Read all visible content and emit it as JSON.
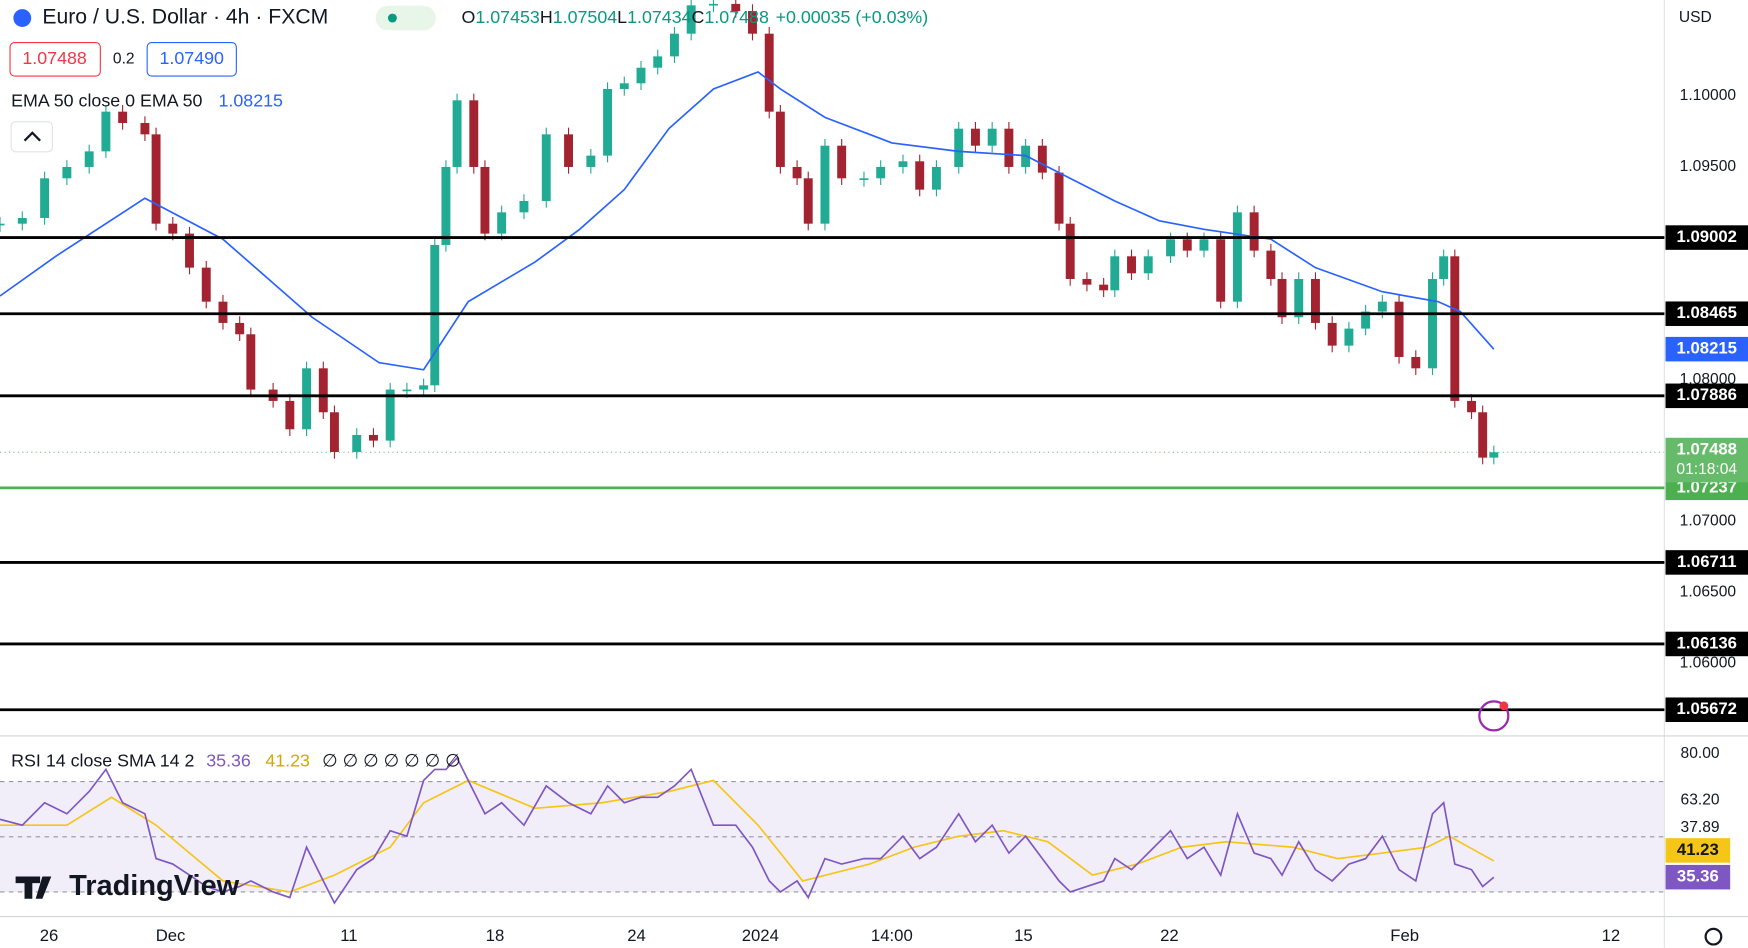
{
  "header": {
    "symbol": "Euro / U.S. Dollar · 4h · FXCM",
    "quote": [
      "O",
      "1.07453",
      "H",
      "1.07504",
      "L",
      "1.07434",
      "C",
      "1.07488",
      "+0.00035 (+0.03%)"
    ],
    "spread": "0.2",
    "ask": "1.07490",
    "currency": "USD",
    "countdown": "01:18:04",
    "logo": "TradingView"
  },
  "chart_data": [
    {
      "type": "candlestick",
      "title": "Euro / U.S. Dollar · 4h · FXCM",
      "x": [
        0,
        4,
        8,
        12,
        16,
        19,
        22,
        26,
        28,
        31,
        34,
        37,
        40,
        43,
        45,
        49,
        52,
        55,
        58,
        60,
        64,
        67,
        70,
        73,
        76,
        78,
        80,
        82,
        85,
        87,
        90,
        94,
        98,
        102,
        106,
        109,
        112,
        115,
        118,
        121,
        124,
        128,
        132,
        135,
        138,
        140,
        143,
        145,
        148,
        151,
        155,
        158,
        162,
        165,
        168,
        172,
        175,
        178,
        181,
        184,
        187,
        190,
        192,
        195,
        198,
        200,
        203,
        206,
        210,
        213,
        216,
        219,
        222,
        225,
        228,
        230,
        233,
        236,
        239,
        242,
        245,
        248,
        251,
        254,
        257,
        259,
        261,
        264,
        266,
        268
      ],
      "values": [
        1.091,
        1.0914,
        1.0942,
        1.095,
        1.0961,
        1.0989,
        1.0981,
        1.0973,
        1.091,
        1.0903,
        1.0879,
        1.0855,
        1.084,
        1.0832,
        1.0793,
        1.0785,
        1.0765,
        1.0808,
        1.0777,
        1.0749,
        1.0761,
        1.0757,
        1.0793,
        1.0793,
        1.0796,
        1.0895,
        1.095,
        1.0997,
        1.095,
        1.0903,
        1.0918,
        1.0926,
        1.0973,
        1.095,
        1.0958,
        1.1005,
        1.1009,
        1.102,
        1.1028,
        1.1044,
        1.1064,
        1.1065,
        1.106,
        1.1044,
        1.0989,
        1.095,
        1.0942,
        1.091,
        1.0965,
        1.0942,
        1.0942,
        1.095,
        1.0954,
        1.0934,
        1.095,
        1.0977,
        1.0965,
        1.0977,
        1.095,
        1.0965,
        1.0946,
        1.091,
        1.0871,
        1.0867,
        1.0863,
        1.0887,
        1.0875,
        1.0887,
        1.0899,
        1.0891,
        1.0899,
        1.0855,
        1.0918,
        1.0891,
        1.0871,
        1.0844,
        1.0871,
        1.084,
        1.0824,
        1.0836,
        1.0848,
        1.0855,
        1.0816,
        1.0808,
        1.0871,
        1.0887,
        1.0785,
        1.0777,
        1.0745,
        1.07488
      ],
      "up_color": "#22ab94",
      "down_color": "#a32430",
      "last_color": "#66bb6a",
      "ema_label": "EMA 50 close 0 EMA 50",
      "ema_color": "#2962ff",
      "ema_x": [
        0,
        10,
        26,
        40,
        56,
        68,
        76,
        84,
        96,
        104,
        112,
        120,
        128,
        136,
        140,
        148,
        160,
        172,
        184,
        192,
        200,
        208,
        216,
        228,
        236,
        248,
        258,
        262,
        268
      ],
      "ema_values": [
        1.0859,
        1.0887,
        1.0928,
        1.0899,
        1.0844,
        1.0812,
        1.0807,
        1.0855,
        1.0883,
        1.0906,
        1.0934,
        1.0977,
        1.1005,
        1.1017,
        1.1005,
        1.0985,
        1.0967,
        1.0961,
        1.0958,
        1.0942,
        1.0926,
        1.0912,
        1.0906,
        1.0899,
        1.0879,
        1.0862,
        1.0855,
        1.0848,
        1.08215
      ],
      "levels": [
        1.09002,
        1.08465,
        1.07886,
        1.07237,
        1.06711,
        1.06136,
        1.05672
      ],
      "level_colors": [
        "#000000",
        "#000000",
        "#000000",
        "#4caf50",
        "#000000",
        "#000000",
        "#000000"
      ],
      "ylim": [
        1.05487,
        1.10676
      ],
      "yticks": [
        {
          "value": 1.1,
          "label": "1.10000"
        },
        {
          "value": 1.095,
          "label": "1.09500"
        },
        {
          "value": 1.08,
          "label": "1.08000"
        },
        {
          "value": 1.07,
          "label": "1.07000"
        },
        {
          "value": 1.065,
          "label": "1.06500"
        },
        {
          "value": 1.06,
          "label": "1.06000"
        }
      ],
      "xlim": [
        0,
        298.6
      ],
      "xticks": [
        {
          "value": 8.8,
          "label": "26"
        },
        {
          "value": 30.6,
          "label": "Dec"
        },
        {
          "value": 62.6,
          "label": "11"
        },
        {
          "value": 88.8,
          "label": "18"
        },
        {
          "value": 114.2,
          "label": "24"
        },
        {
          "value": 136.4,
          "label": "2024"
        },
        {
          "value": 160,
          "label": "14:00"
        },
        {
          "value": 183.6,
          "label": "15"
        },
        {
          "value": 209.8,
          "label": "22"
        },
        {
          "value": 252,
          "label": "Feb"
        },
        {
          "value": 289,
          "label": "12"
        }
      ]
    },
    {
      "type": "line",
      "title": "RSI 14 close SMA 14 2",
      "empty_values": "∅ ∅ ∅ ∅ ∅ ∅ ∅",
      "x": [
        0,
        4,
        8,
        12,
        16,
        19,
        22,
        26,
        28,
        31,
        34,
        37,
        40,
        43,
        45,
        49,
        52,
        55,
        58,
        60,
        64,
        67,
        70,
        73,
        76,
        78,
        80,
        82,
        85,
        87,
        90,
        94,
        98,
        102,
        106,
        109,
        112,
        115,
        118,
        121,
        124,
        128,
        132,
        135,
        138,
        140,
        143,
        145,
        148,
        151,
        155,
        158,
        162,
        165,
        168,
        172,
        175,
        178,
        181,
        184,
        187,
        190,
        192,
        195,
        198,
        200,
        203,
        206,
        210,
        213,
        216,
        219,
        222,
        225,
        228,
        230,
        233,
        236,
        239,
        242,
        245,
        248,
        251,
        254,
        257,
        259,
        261,
        264,
        266,
        268
      ],
      "values": [
        56.3,
        54.2,
        62.3,
        58.3,
        66.4,
        74.4,
        62.3,
        58.3,
        42.1,
        40.1,
        36.1,
        32.0,
        30.0,
        32.0,
        34.0,
        30.0,
        28.0,
        46.2,
        34.0,
        26.0,
        38.1,
        42.1,
        52.2,
        50.2,
        70.4,
        74.4,
        74.4,
        78.5,
        66.4,
        58.3,
        62.3,
        54.2,
        68.4,
        62.3,
        58.3,
        68.4,
        62.3,
        64.3,
        64.3,
        68.4,
        74.4,
        54.2,
        54.2,
        46.2,
        34.0,
        30.0,
        34.0,
        28.0,
        42.1,
        40.1,
        42.1,
        42.1,
        50.2,
        42.1,
        46.2,
        58.3,
        48.2,
        54.2,
        44.1,
        50.2,
        42.1,
        34.0,
        30.0,
        32.0,
        34.0,
        42.1,
        38.1,
        44.1,
        52.2,
        42.1,
        46.2,
        36.1,
        58.3,
        44.1,
        42.1,
        36.1,
        48.2,
        38.1,
        34.0,
        40.1,
        42.1,
        50.2,
        38.1,
        34.0,
        58.3,
        62.3,
        40.1,
        38.1,
        32.0,
        35.36
      ],
      "color": "#7e57c2",
      "sma_x": [
        0,
        12,
        20,
        28,
        40,
        52,
        60,
        70,
        76,
        84,
        96,
        108,
        120,
        128,
        136,
        144,
        156,
        164,
        172,
        180,
        188,
        196,
        204,
        212,
        220,
        232,
        240,
        248,
        256,
        260,
        268
      ],
      "sma_values": [
        54.2,
        54.2,
        64.3,
        54.2,
        34.0,
        30.0,
        36.1,
        46.2,
        62.3,
        70.4,
        60.3,
        62.3,
        66.4,
        70.4,
        54.2,
        34.0,
        40.1,
        46.2,
        50.2,
        52.2,
        48.2,
        36.1,
        40.1,
        46.2,
        48.2,
        46.2,
        42.1,
        44.1,
        46.2,
        50.2,
        41.23
      ],
      "sma_color": "#f5c518",
      "levels": [
        70,
        50,
        30
      ],
      "ylim": [
        21.9,
        86.5
      ],
      "yticks": [
        {
          "value": 80,
          "label": "80.00"
        },
        {
          "value": 63.2,
          "label": "63.20"
        },
        {
          "value": 37.89,
          "label": "37.89"
        }
      ]
    }
  ]
}
